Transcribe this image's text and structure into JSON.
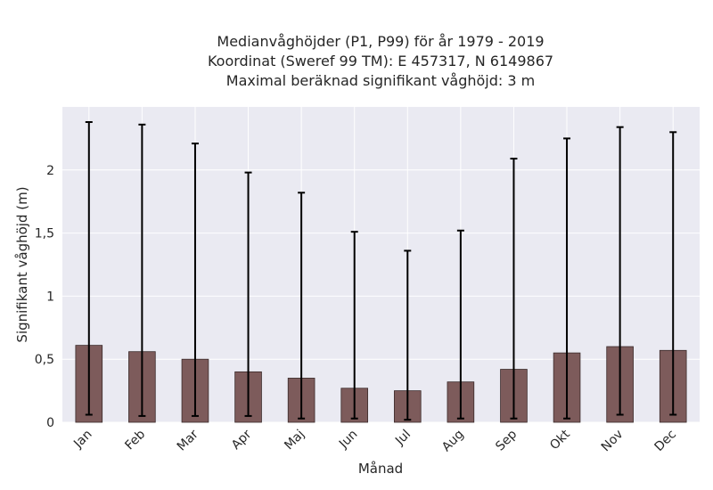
{
  "chart_data": {
    "type": "bar",
    "title_lines": [
      "Medianvåghöjder (P1, P99) för år 1979 - 2019",
      "Koordinat (Sweref 99 TM): E 457317, N 6149867",
      "Maximal beräknad signifikant våghöjd: 3 m"
    ],
    "xlabel": "Månad",
    "ylabel": "Signifikant våghöjd (m)",
    "categories": [
      "Jan",
      "Feb",
      "Mar",
      "Apr",
      "Maj",
      "Jun",
      "Jul",
      "Aug",
      "Sep",
      "Okt",
      "Nov",
      "Dec"
    ],
    "values": [
      0.61,
      0.56,
      0.5,
      0.4,
      0.35,
      0.27,
      0.25,
      0.32,
      0.42,
      0.55,
      0.6,
      0.57
    ],
    "p1": [
      0.06,
      0.05,
      0.05,
      0.05,
      0.03,
      0.03,
      0.02,
      0.03,
      0.03,
      0.03,
      0.06,
      0.06
    ],
    "p99": [
      2.38,
      2.36,
      2.21,
      1.98,
      1.82,
      1.51,
      1.36,
      1.52,
      2.09,
      2.25,
      2.34,
      2.3
    ],
    "yticks": [
      0,
      0.5,
      1,
      1.5,
      2
    ],
    "ytick_labels": [
      "0",
      "0,5",
      "1",
      "1,5",
      "2"
    ],
    "ylim": [
      0,
      2.5
    ],
    "grid": true,
    "colors": {
      "bar": "#7d5b5b",
      "bar_edge": "#3a2a2a",
      "error": "#000000",
      "plot_bg": "#eaeaf2",
      "grid": "#ffffff"
    }
  }
}
